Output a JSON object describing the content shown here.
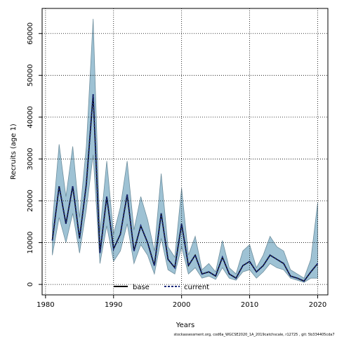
{
  "chart_data": {
    "type": "area",
    "xlabel": "Years",
    "ylabel": "Recruits (age 1)",
    "xlim": [
      1979.5,
      2021.5
    ],
    "ylim": [
      -2500,
      66000
    ],
    "x_ticks": [
      1980,
      1990,
      2000,
      2010,
      2020
    ],
    "y_ticks": [
      0,
      10000,
      20000,
      30000,
      40000,
      50000,
      60000
    ],
    "grid": true,
    "legend_position": "bottom-center",
    "x": [
      1981,
      1982,
      1983,
      1984,
      1985,
      1986,
      1987,
      1988,
      1989,
      1990,
      1991,
      1992,
      1993,
      1994,
      1995,
      1996,
      1997,
      1998,
      1999,
      2000,
      2001,
      2002,
      2003,
      2004,
      2005,
      2006,
      2007,
      2008,
      2009,
      2010,
      2011,
      2012,
      2013,
      2014,
      2015,
      2016,
      2017,
      2018,
      2019,
      2020
    ],
    "series": [
      {
        "name": "base",
        "style": "solid",
        "color": "#000000",
        "values": [
          10500,
          23500,
          14500,
          23500,
          11000,
          24000,
          45500,
          7500,
          21000,
          8500,
          12000,
          21500,
          8000,
          14000,
          10000,
          4500,
          17000,
          6000,
          4000,
          14500,
          4500,
          7000,
          2500,
          3000,
          2000,
          6500,
          2500,
          1500,
          4500,
          5500,
          3000,
          4500,
          7000,
          6000,
          5000,
          2000,
          1500,
          800,
          3000,
          5000
        ]
      },
      {
        "name": "current",
        "style": "dashed",
        "color": "#1a2a7a",
        "values": [
          10500,
          23500,
          14500,
          23500,
          11000,
          24000,
          45500,
          7500,
          21000,
          8500,
          12000,
          21500,
          8000,
          14000,
          10000,
          4500,
          17000,
          6000,
          4000,
          14500,
          4500,
          7000,
          2500,
          3000,
          2000,
          6500,
          2500,
          1500,
          4500,
          5500,
          3000,
          4500,
          7000,
          6000,
          5000,
          2000,
          1500,
          800,
          3000,
          5000
        ]
      }
    ],
    "band": {
      "color": "#9ec2d4",
      "stroke": "#6f8f9e",
      "lower": [
        7000,
        16000,
        10000,
        17000,
        7500,
        18000,
        31000,
        5000,
        14000,
        5500,
        8000,
        14500,
        5000,
        9500,
        7000,
        2500,
        11000,
        3500,
        2500,
        9000,
        2500,
        4000,
        1500,
        2000,
        1200,
        4000,
        1500,
        1000,
        3000,
        3500,
        1500,
        3000,
        5000,
        4000,
        3500,
        1500,
        1000,
        500,
        1500,
        1500
      ],
      "upper": [
        14500,
        33500,
        21000,
        33000,
        16000,
        33000,
        63500,
        12500,
        29500,
        12000,
        18500,
        29500,
        13000,
        21000,
        15500,
        8000,
        26500,
        9000,
        6500,
        23000,
        7000,
        11500,
        3500,
        5000,
        3000,
        10500,
        4000,
        2500,
        8000,
        9500,
        4000,
        7000,
        11500,
        9000,
        8000,
        3500,
        2500,
        1500,
        6000,
        19500
      ]
    }
  },
  "legend": {
    "items": [
      {
        "label": "base",
        "style": "solid"
      },
      {
        "label": "current",
        "style": "dashed"
      }
    ]
  },
  "footer": {
    "text": "stockassessment.org,  cod6a_WGCSE2020_1A_2019catchscale,  r12725 ,  git: 5b334405cda7"
  }
}
